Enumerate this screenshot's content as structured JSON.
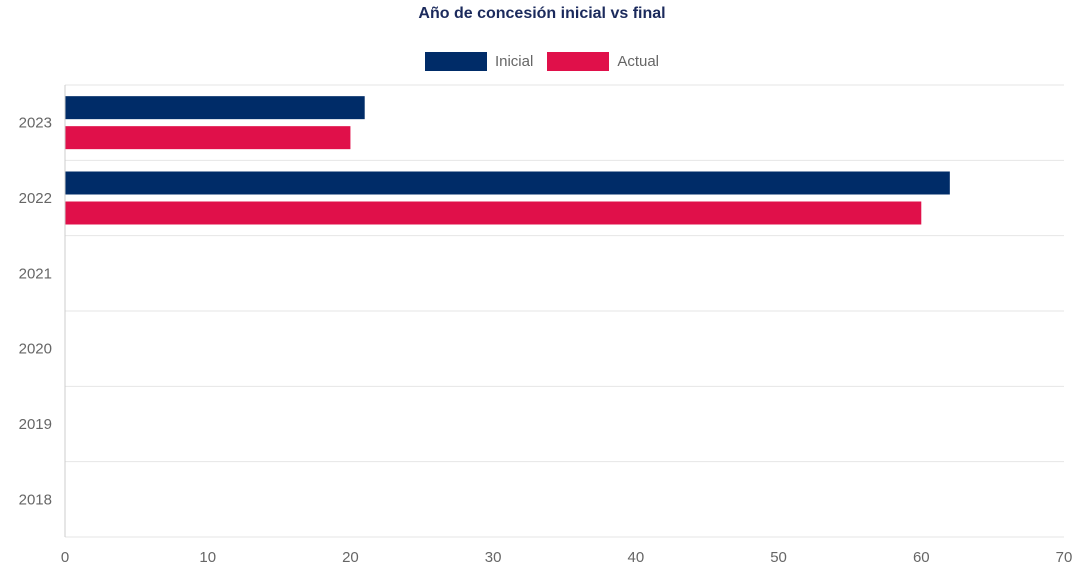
{
  "chart_data": {
    "type": "bar",
    "orientation": "horizontal",
    "title": "Año de concesión inicial vs final",
    "categories": [
      "2023",
      "2022",
      "2021",
      "2020",
      "2019",
      "2018"
    ],
    "series": [
      {
        "name": "Inicial",
        "color": "#002c68",
        "values": [
          21,
          62,
          null,
          null,
          null,
          null
        ]
      },
      {
        "name": "Actual",
        "color": "#e0104a",
        "values": [
          20,
          60,
          null,
          null,
          null,
          null
        ]
      }
    ],
    "xlim": [
      0,
      70
    ],
    "xticks": [
      "0",
      "10",
      "20",
      "30",
      "40",
      "50",
      "60",
      "70"
    ],
    "xlabel": "",
    "ylabel": "",
    "grid": true,
    "legend_position": "top-center"
  }
}
